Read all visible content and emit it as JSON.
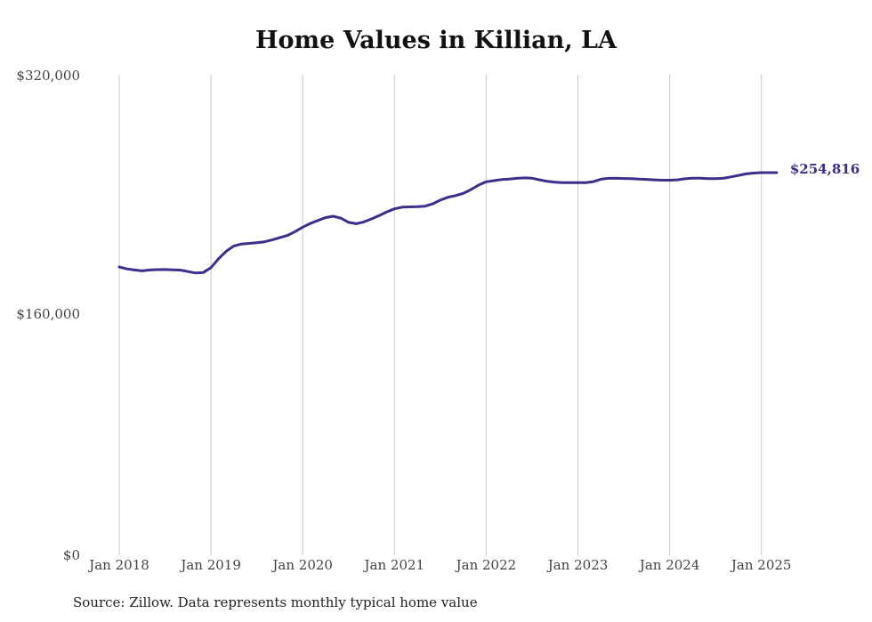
{
  "chart_data": {
    "type": "line",
    "title": "Home Values in Killian, LA",
    "xlabel": "",
    "ylabel": "",
    "ylim": [
      0,
      320000
    ],
    "y_ticks": [
      "$320,000",
      "$160,000",
      "$0"
    ],
    "y_tick_values": [
      320000,
      160000,
      0
    ],
    "x_ticks": [
      "Jan 2018",
      "Jan 2019",
      "Jan 2020",
      "Jan 2021",
      "Jan 2022",
      "Jan 2023",
      "Jan 2024",
      "Jan 2025"
    ],
    "grid": "vertical",
    "line_color": "#3b2f8a",
    "end_label": "$254,816",
    "series": [
      {
        "x": [
          "2018-01",
          "2018-02",
          "2018-03",
          "2018-04",
          "2018-05",
          "2018-06",
          "2018-07",
          "2018-08",
          "2018-09",
          "2018-10",
          "2018-11",
          "2018-12",
          "2019-01",
          "2019-02",
          "2019-03",
          "2019-04",
          "2019-05",
          "2019-06",
          "2019-07",
          "2019-08",
          "2019-09",
          "2019-10",
          "2019-11",
          "2019-12",
          "2020-01",
          "2020-02",
          "2020-03",
          "2020-04",
          "2020-05",
          "2020-06",
          "2020-07",
          "2020-08",
          "2020-09",
          "2020-10",
          "2020-11",
          "2020-12",
          "2021-01",
          "2021-02",
          "2021-03",
          "2021-04",
          "2021-05",
          "2021-06",
          "2021-07",
          "2021-08",
          "2021-09",
          "2021-10",
          "2021-11",
          "2021-12",
          "2022-01",
          "2022-02",
          "2022-03",
          "2022-04",
          "2022-05",
          "2022-06",
          "2022-07",
          "2022-08",
          "2022-09",
          "2022-10",
          "2022-11",
          "2022-12",
          "2023-01",
          "2023-02",
          "2023-03",
          "2023-04",
          "2023-05",
          "2023-06",
          "2023-07",
          "2023-08",
          "2023-09",
          "2023-10",
          "2023-11",
          "2023-12",
          "2024-01",
          "2024-02",
          "2024-03",
          "2024-04",
          "2024-05",
          "2024-06",
          "2024-07",
          "2024-08",
          "2024-09",
          "2024-10",
          "2024-11",
          "2024-12",
          "2025-01",
          "2025-02",
          "2025-03"
        ],
        "values": [
          192000,
          190700,
          190000,
          189400,
          190000,
          190200,
          190300,
          190100,
          189900,
          188900,
          188000,
          188300,
          191500,
          197500,
          202500,
          206000,
          207300,
          207700,
          208200,
          208800,
          210000,
          211500,
          213000,
          215500,
          218500,
          221000,
          223000,
          224900,
          225800,
          224500,
          221700,
          220800,
          222000,
          224000,
          226200,
          228700,
          230700,
          231800,
          232000,
          232200,
          232500,
          234000,
          236500,
          238400,
          239500,
          241000,
          243500,
          246500,
          248700,
          249500,
          250200,
          250500,
          251000,
          251300,
          251100,
          250000,
          249000,
          248400,
          248100,
          248200,
          248200,
          248200,
          248800,
          250400,
          251000,
          251000,
          250900,
          250800,
          250500,
          250300,
          250000,
          249800,
          249800,
          250000,
          250700,
          251100,
          251100,
          250800,
          250800,
          251000,
          252000,
          253000,
          254000,
          254500,
          254800,
          254800,
          254816
        ]
      }
    ]
  },
  "source": "Source: Zillow. Data represents monthly typical home value"
}
